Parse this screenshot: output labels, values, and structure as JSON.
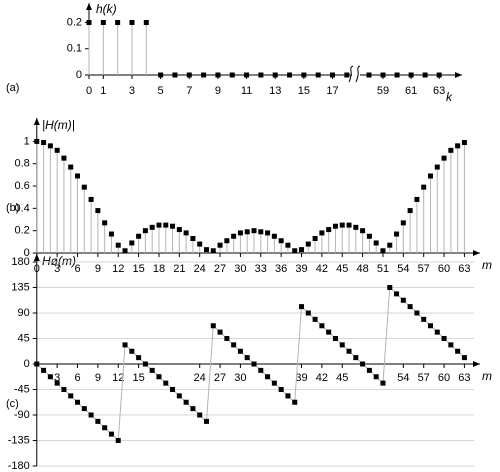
{
  "chart_data": [
    {
      "type": "stem",
      "label": "(a)",
      "ylabel": "h(k)",
      "xlabel": "k",
      "x": [
        0,
        1,
        2,
        3,
        4,
        5,
        6,
        7,
        8,
        9,
        10,
        11,
        12,
        13,
        14,
        15,
        16,
        17,
        18,
        58,
        59,
        60,
        61,
        62,
        63
      ],
      "values": [
        0.2,
        0.2,
        0.2,
        0.2,
        0.2,
        0,
        0,
        0,
        0,
        0,
        0,
        0,
        0,
        0,
        0,
        0,
        0,
        0,
        0,
        0,
        0,
        0,
        0,
        0,
        0
      ],
      "xlim": [
        [
          0,
          18.5
        ],
        [
          57.5,
          64.2
        ]
      ],
      "xticks": [
        0,
        1,
        3,
        5,
        7,
        9,
        11,
        13,
        15,
        17,
        59,
        61,
        63
      ],
      "ylim": [
        0,
        0.24
      ],
      "yticks": [
        0,
        0.1,
        0.2
      ],
      "color": "#000000",
      "stem_color": "#b4b4b4",
      "stems": true,
      "line": false,
      "grid": false
    },
    {
      "type": "stem",
      "label": "(b)",
      "ylabel": "|H(m)|",
      "xlabel": "m",
      "x": [
        0,
        1,
        2,
        3,
        4,
        5,
        6,
        7,
        8,
        9,
        10,
        11,
        12,
        13,
        14,
        15,
        16,
        17,
        18,
        19,
        20,
        21,
        22,
        23,
        24,
        25,
        26,
        27,
        28,
        29,
        30,
        31,
        32,
        33,
        34,
        35,
        36,
        37,
        38,
        39,
        40,
        41,
        42,
        43,
        44,
        45,
        46,
        47,
        48,
        49,
        50,
        51,
        52,
        53,
        54,
        55,
        56,
        57,
        58,
        59,
        60,
        61,
        62,
        63
      ],
      "values": [
        1,
        0.99,
        0.96,
        0.92,
        0.85,
        0.77,
        0.69,
        0.59,
        0.48,
        0.38,
        0.27,
        0.17,
        0.07,
        0.02,
        0.09,
        0.15,
        0.2,
        0.23,
        0.25,
        0.25,
        0.24,
        0.21,
        0.18,
        0.13,
        0.08,
        0.03,
        0.02,
        0.07,
        0.11,
        0.15,
        0.18,
        0.19,
        0.2,
        0.19,
        0.18,
        0.15,
        0.11,
        0.07,
        0.02,
        0.03,
        0.08,
        0.13,
        0.18,
        0.21,
        0.24,
        0.25,
        0.25,
        0.23,
        0.2,
        0.15,
        0.09,
        0.02,
        0.07,
        0.17,
        0.27,
        0.38,
        0.48,
        0.59,
        0.69,
        0.77,
        0.85,
        0.92,
        0.96,
        0.99
      ],
      "xlim": [
        -1,
        65
      ],
      "xticks": [
        0,
        3,
        6,
        9,
        12,
        15,
        18,
        21,
        24,
        27,
        30,
        33,
        36,
        39,
        42,
        45,
        48,
        51,
        54,
        57,
        60,
        63
      ],
      "ylim": [
        0,
        1.12
      ],
      "yticks": [
        0,
        0.2,
        0.4,
        0.6,
        0.8,
        1
      ],
      "color": "#000000",
      "stem_color": "#b4b4b4",
      "stems": true,
      "line": false,
      "grid": false
    },
    {
      "type": "stem",
      "label": "(c)",
      "ylabel": "Hø(m)",
      "xlabel": "m",
      "x": [
        0,
        1,
        2,
        3,
        4,
        5,
        6,
        7,
        8,
        9,
        10,
        11,
        12,
        13,
        14,
        15,
        16,
        17,
        18,
        19,
        20,
        21,
        22,
        23,
        24,
        25,
        26,
        27,
        28,
        29,
        30,
        31,
        32,
        33,
        34,
        35,
        36,
        37,
        38,
        39,
        40,
        41,
        42,
        43,
        44,
        45,
        46,
        47,
        48,
        49,
        50,
        51,
        52,
        53,
        54,
        55,
        56,
        57,
        58,
        59,
        60,
        61,
        62,
        63
      ],
      "values": [
        0,
        -11.25,
        -22.5,
        -33.75,
        -45,
        -56.25,
        -67.5,
        -78.75,
        -90,
        -101.25,
        -112.5,
        -123.75,
        -135,
        33.75,
        22.5,
        11.25,
        0,
        -11.25,
        -22.5,
        -33.75,
        -45,
        -56.25,
        -67.5,
        -78.75,
        -90,
        -101.25,
        67.5,
        56.25,
        45,
        33.75,
        22.5,
        11.25,
        0,
        -11.25,
        -22.5,
        -33.75,
        -45,
        -56.25,
        -67.5,
        101.25,
        90,
        78.75,
        67.5,
        56.25,
        45,
        33.75,
        22.5,
        11.25,
        0,
        -11.25,
        -22.5,
        -33.75,
        135,
        123.75,
        112.5,
        101.25,
        90,
        78.75,
        67.5,
        56.25,
        45,
        33.75,
        22.5,
        11.25
      ],
      "xlim": [
        -1,
        65
      ],
      "xticks": [
        3,
        6,
        9,
        12,
        15,
        24,
        27,
        30,
        39,
        42,
        45,
        54,
        57,
        60,
        63
      ],
      "ylim": [
        -180,
        180
      ],
      "yticks": [
        -180,
        -135,
        -90,
        -45,
        0,
        45,
        90,
        135,
        180
      ],
      "color": "#000000",
      "stem_color": "#b4b4b4",
      "stems": false,
      "line": true,
      "grid": true
    }
  ]
}
